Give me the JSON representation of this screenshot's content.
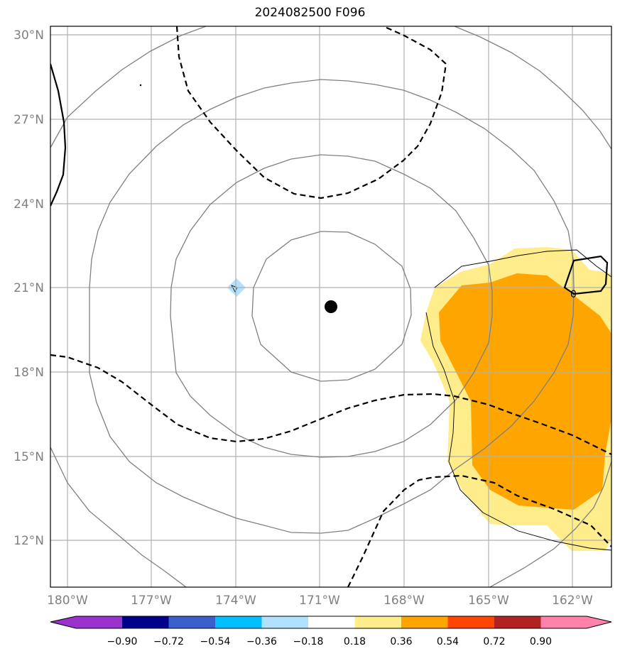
{
  "title": "2024082500 F096",
  "map": {
    "lat_ticks": [
      "30°N",
      "27°N",
      "24°N",
      "21°N",
      "18°N",
      "15°N",
      "12°N"
    ],
    "lon_ticks": [
      "180°W",
      "177°W",
      "174°W",
      "171°W",
      "168°W",
      "165°W",
      "162°W"
    ],
    "extent": {
      "lon": [
        -180.6,
        -160.6
      ],
      "lat": [
        10.3,
        30.3
      ]
    },
    "storm_center": {
      "lon": -170.6,
      "lat": 20.3
    },
    "contour_label": "0",
    "shading_colors": {
      "light": "#ffe68c",
      "dark": "#ffa500",
      "blue": "#b0e0ff"
    },
    "contour_colors": {
      "gray": "#808080",
      "dashed": "#000000"
    }
  },
  "colorbar": {
    "colors": [
      "#9a32cd",
      "#00008b",
      "#3a5fcd",
      "#00bfff",
      "#b0e2ff",
      "#ffffff",
      "#ffec8b",
      "#ffa500",
      "#ff4500",
      "#b22222",
      "#ff82ab"
    ],
    "labels": [
      "−0.90",
      "−0.72",
      "−0.54",
      "−0.36",
      "−0.18",
      "0.18",
      "0.36",
      "0.54",
      "0.72",
      "0.90"
    ]
  }
}
